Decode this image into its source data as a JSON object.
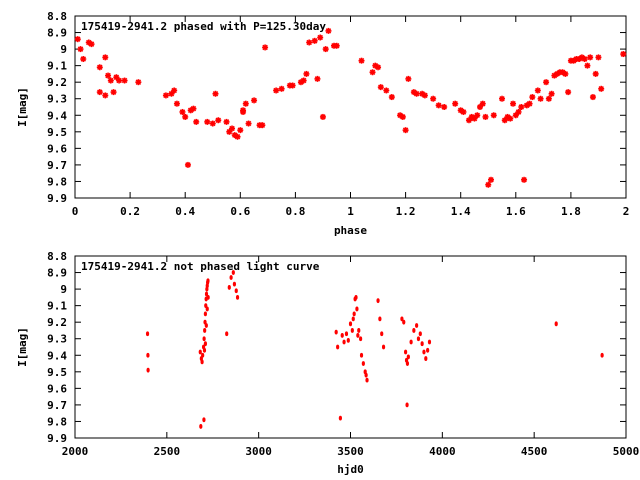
{
  "chart_data": [
    {
      "type": "scatter",
      "title": "175419-2941.2 phased with P=125.30day",
      "xlabel": "phase",
      "ylabel": "I[mag]",
      "xlim": [
        0,
        2
      ],
      "ylim": [
        8.8,
        9.9
      ],
      "y_inverted": true,
      "grid": false,
      "legend": "none",
      "x_ticks": [
        "0",
        "0.2",
        "0.4",
        "0.6",
        "0.8",
        "1",
        "1.2",
        "1.4",
        "1.6",
        "1.8",
        "2"
      ],
      "y_ticks": [
        "8.8",
        "8.9",
        "9",
        "9.1",
        "9.2",
        "9.3",
        "9.4",
        "9.5",
        "9.6",
        "9.7",
        "9.8",
        "9.9"
      ],
      "marker_color": "#ff0000",
      "series": [
        {
          "points": [
            [
              0.01,
              8.94
            ],
            [
              0.02,
              9.0
            ],
            [
              0.03,
              9.06
            ],
            [
              0.05,
              8.96
            ],
            [
              0.06,
              8.97
            ],
            [
              0.09,
              9.11
            ],
            [
              0.09,
              9.26
            ],
            [
              0.11,
              9.28
            ],
            [
              0.11,
              9.05
            ],
            [
              0.12,
              9.16
            ],
            [
              0.13,
              9.19
            ],
            [
              0.14,
              9.26
            ],
            [
              0.15,
              9.17
            ],
            [
              0.16,
              9.19
            ],
            [
              0.18,
              9.19
            ],
            [
              0.23,
              9.2
            ],
            [
              0.33,
              9.28
            ],
            [
              0.35,
              9.27
            ],
            [
              0.36,
              9.25
            ],
            [
              0.37,
              9.33
            ],
            [
              0.39,
              9.38
            ],
            [
              0.4,
              9.41
            ],
            [
              0.41,
              9.7
            ],
            [
              0.42,
              9.37
            ],
            [
              0.43,
              9.36
            ],
            [
              0.44,
              9.44
            ],
            [
              0.48,
              9.44
            ],
            [
              0.5,
              9.45
            ],
            [
              0.51,
              9.27
            ],
            [
              0.52,
              9.43
            ],
            [
              0.55,
              9.44
            ],
            [
              0.56,
              9.5
            ],
            [
              0.57,
              9.48
            ],
            [
              0.58,
              9.52
            ],
            [
              0.59,
              9.53
            ],
            [
              0.6,
              9.49
            ],
            [
              0.61,
              9.37
            ],
            [
              0.61,
              9.38
            ],
            [
              0.62,
              9.33
            ],
            [
              0.63,
              9.45
            ],
            [
              0.65,
              9.31
            ],
            [
              0.67,
              9.46
            ],
            [
              0.68,
              9.46
            ],
            [
              0.69,
              8.99
            ],
            [
              0.73,
              9.25
            ],
            [
              0.75,
              9.24
            ],
            [
              0.78,
              9.22
            ],
            [
              0.79,
              9.22
            ],
            [
              0.82,
              9.2
            ],
            [
              0.83,
              9.19
            ],
            [
              0.84,
              9.15
            ],
            [
              0.85,
              8.96
            ],
            [
              0.87,
              8.95
            ],
            [
              0.88,
              9.18
            ],
            [
              0.89,
              8.93
            ],
            [
              0.9,
              9.41
            ],
            [
              0.91,
              9.0
            ],
            [
              0.92,
              8.89
            ],
            [
              0.94,
              8.98
            ],
            [
              0.95,
              8.98
            ],
            [
              1.04,
              9.07
            ],
            [
              1.08,
              9.14
            ],
            [
              1.09,
              9.1
            ],
            [
              1.1,
              9.11
            ],
            [
              1.11,
              9.23
            ],
            [
              1.13,
              9.25
            ],
            [
              1.15,
              9.29
            ],
            [
              1.18,
              9.4
            ],
            [
              1.19,
              9.41
            ],
            [
              1.2,
              9.49
            ],
            [
              1.21,
              9.18
            ],
            [
              1.23,
              9.26
            ],
            [
              1.24,
              9.27
            ],
            [
              1.26,
              9.27
            ],
            [
              1.27,
              9.28
            ],
            [
              1.3,
              9.3
            ],
            [
              1.32,
              9.34
            ],
            [
              1.34,
              9.35
            ],
            [
              1.38,
              9.33
            ],
            [
              1.4,
              9.37
            ],
            [
              1.41,
              9.38
            ],
            [
              1.43,
              9.43
            ],
            [
              1.44,
              9.41
            ],
            [
              1.45,
              9.42
            ],
            [
              1.46,
              9.4
            ],
            [
              1.47,
              9.35
            ],
            [
              1.48,
              9.33
            ],
            [
              1.49,
              9.41
            ],
            [
              1.5,
              9.82
            ],
            [
              1.51,
              9.79
            ],
            [
              1.52,
              9.4
            ],
            [
              1.55,
              9.3
            ],
            [
              1.56,
              9.43
            ],
            [
              1.57,
              9.41
            ],
            [
              1.58,
              9.42
            ],
            [
              1.59,
              9.33
            ],
            [
              1.6,
              9.4
            ],
            [
              1.61,
              9.38
            ],
            [
              1.62,
              9.35
            ],
            [
              1.63,
              9.79
            ],
            [
              1.64,
              9.34
            ],
            [
              1.65,
              9.33
            ],
            [
              1.66,
              9.29
            ],
            [
              1.68,
              9.25
            ],
            [
              1.69,
              9.3
            ],
            [
              1.71,
              9.2
            ],
            [
              1.72,
              9.3
            ],
            [
              1.73,
              9.27
            ],
            [
              1.74,
              9.16
            ],
            [
              1.75,
              9.15
            ],
            [
              1.76,
              9.14
            ],
            [
              1.77,
              9.14
            ],
            [
              1.78,
              9.15
            ],
            [
              1.79,
              9.26
            ],
            [
              1.8,
              9.07
            ],
            [
              1.81,
              9.07
            ],
            [
              1.82,
              9.06
            ],
            [
              1.83,
              9.06
            ],
            [
              1.84,
              9.05
            ],
            [
              1.85,
              9.06
            ],
            [
              1.86,
              9.1
            ],
            [
              1.87,
              9.05
            ],
            [
              1.88,
              9.29
            ],
            [
              1.89,
              9.15
            ],
            [
              1.9,
              9.05
            ],
            [
              1.91,
              9.24
            ],
            [
              1.99,
              9.03
            ]
          ]
        }
      ]
    },
    {
      "type": "scatter",
      "title": "175419-2941.2 not phased light curve",
      "xlabel": "hjd0",
      "ylabel": "I[mag]",
      "xlim": [
        2000,
        5000
      ],
      "ylim": [
        8.8,
        9.9
      ],
      "y_inverted": true,
      "grid": false,
      "legend": "none",
      "x_ticks": [
        "2000",
        "2500",
        "3000",
        "3500",
        "4000",
        "4500",
        "5000"
      ],
      "y_ticks": [
        "8.8",
        "8.9",
        "9",
        "9.1",
        "9.2",
        "9.3",
        "9.4",
        "9.5",
        "9.6",
        "9.7",
        "9.8",
        "9.9"
      ],
      "marker_color": "#ff0000",
      "series": [
        {
          "points": [
            [
              2395,
              9.27
            ],
            [
              2397,
              9.4
            ],
            [
              2398,
              9.49
            ],
            [
              2685,
              9.83
            ],
            [
              2702,
              9.79
            ],
            [
              2682,
              9.38
            ],
            [
              2688,
              9.42
            ],
            [
              2692,
              9.44
            ],
            [
              2695,
              9.4
            ],
            [
              2700,
              9.35
            ],
            [
              2703,
              9.3
            ],
            [
              2706,
              9.25
            ],
            [
              2708,
              9.2
            ],
            [
              2710,
              9.15
            ],
            [
              2712,
              9.1
            ],
            [
              2714,
              9.06
            ],
            [
              2716,
              9.03
            ],
            [
              2718,
              9.0
            ],
            [
              2720,
              8.98
            ],
            [
              2722,
              8.96
            ],
            [
              2724,
              8.95
            ],
            [
              2705,
              9.37
            ],
            [
              2710,
              9.33
            ],
            [
              2715,
              9.22
            ],
            [
              2720,
              9.12
            ],
            [
              2725,
              9.05
            ],
            [
              2826,
              9.27
            ],
            [
              2840,
              8.99
            ],
            [
              2850,
              8.93
            ],
            [
              2862,
              8.9
            ],
            [
              2868,
              8.97
            ],
            [
              2878,
              9.01
            ],
            [
              2885,
              9.05
            ],
            [
              3422,
              9.26
            ],
            [
              3430,
              9.35
            ],
            [
              3445,
              9.78
            ],
            [
              3455,
              9.28
            ],
            [
              3465,
              9.32
            ],
            [
              3478,
              9.27
            ],
            [
              3488,
              9.31
            ],
            [
              3500,
              9.21
            ],
            [
              3510,
              9.25
            ],
            [
              3515,
              9.18
            ],
            [
              3520,
              9.15
            ],
            [
              3525,
              9.06
            ],
            [
              3530,
              9.05
            ],
            [
              3535,
              9.12
            ],
            [
              3540,
              9.28
            ],
            [
              3545,
              9.25
            ],
            [
              3555,
              9.3
            ],
            [
              3560,
              9.4
            ],
            [
              3570,
              9.45
            ],
            [
              3580,
              9.5
            ],
            [
              3585,
              9.52
            ],
            [
              3590,
              9.55
            ],
            [
              3650,
              9.07
            ],
            [
              3660,
              9.18
            ],
            [
              3670,
              9.27
            ],
            [
              3680,
              9.35
            ],
            [
              3780,
              9.18
            ],
            [
              3790,
              9.2
            ],
            [
              3800,
              9.38
            ],
            [
              3805,
              9.43
            ],
            [
              3810,
              9.45
            ],
            [
              3815,
              9.41
            ],
            [
              3808,
              9.7
            ],
            [
              3830,
              9.32
            ],
            [
              3845,
              9.25
            ],
            [
              3860,
              9.22
            ],
            [
              3870,
              9.3
            ],
            [
              3880,
              9.27
            ],
            [
              3890,
              9.33
            ],
            [
              3900,
              9.38
            ],
            [
              3910,
              9.42
            ],
            [
              3920,
              9.37
            ],
            [
              3930,
              9.32
            ],
            [
              4620,
              9.21
            ],
            [
              4870,
              9.4
            ]
          ]
        }
      ]
    }
  ]
}
